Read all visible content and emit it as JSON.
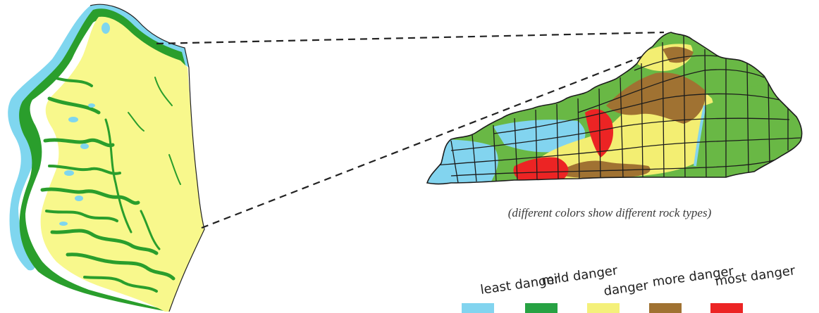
{
  "caption": "(different colors show different rock types)",
  "legend": [
    {
      "label": "least danger",
      "color": "#82d4ef"
    },
    {
      "label": "mild danger",
      "color": "#27a243"
    },
    {
      "label": "danger",
      "color": "#f4f07a"
    },
    {
      "label": "more danger",
      "color": "#a07232"
    },
    {
      "label": "most danger",
      "color": "#ec2424"
    }
  ],
  "colors": {
    "county_fill": "#f8f88c",
    "river": "#7fd6ef",
    "valley": "#2a9e2c",
    "border": "#222222",
    "connector_line": "#222222",
    "state_base": "#69b845"
  }
}
